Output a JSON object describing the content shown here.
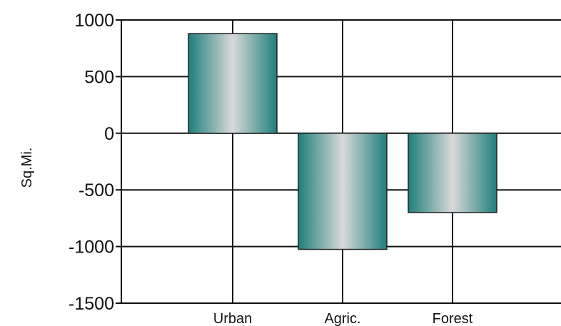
{
  "chart_data": {
    "type": "bar",
    "title": "",
    "xlabel": "",
    "ylabel": "Sq.Mi.",
    "categories": [
      "Urban",
      "Agric.",
      "Forest"
    ],
    "values": [
      880,
      -1025,
      -700
    ],
    "ylim": [
      -1500,
      1000
    ],
    "yticks": [
      1000,
      500,
      0,
      -500,
      -1000,
      -1500
    ],
    "ytick_labels": [
      "1000",
      "500",
      "0",
      "-500",
      "-1000",
      "-1500"
    ],
    "grid": true,
    "legend": "none",
    "bar_colors": {
      "edge": "#1e7f7c",
      "center": "#d9d9d9"
    }
  }
}
